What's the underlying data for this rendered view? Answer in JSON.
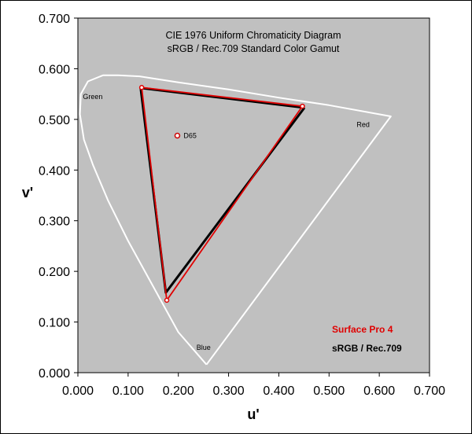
{
  "chart_data": {
    "type": "scatter",
    "title": "CIE 1976 Uniform Chromaticity Diagram",
    "subtitle": "sRGB / Rec.709 Standard Color Gamut",
    "xlabel": "u'",
    "ylabel": "v'",
    "xlim": [
      0.0,
      0.7
    ],
    "ylim": [
      0.0,
      0.7
    ],
    "x_ticks": [
      "0.000",
      "0.100",
      "0.200",
      "0.300",
      "0.400",
      "0.500",
      "0.600",
      "0.700"
    ],
    "y_ticks": [
      "0.000",
      "0.100",
      "0.200",
      "0.300",
      "0.400",
      "0.500",
      "0.600",
      "0.700"
    ],
    "grid": false,
    "plot_background": "#c0c0c0",
    "locus": {
      "color": "#ffffff",
      "u": [
        0.256,
        0.2,
        0.15,
        0.1,
        0.06,
        0.03,
        0.012,
        0.004,
        0.006,
        0.02,
        0.05,
        0.08,
        0.123,
        0.2,
        0.3,
        0.4,
        0.5,
        0.623,
        0.256
      ],
      "v": [
        0.016,
        0.08,
        0.17,
        0.26,
        0.34,
        0.41,
        0.46,
        0.51,
        0.55,
        0.575,
        0.587,
        0.587,
        0.585,
        0.573,
        0.559,
        0.543,
        0.528,
        0.506,
        0.016
      ]
    },
    "series": [
      {
        "name": "sRGB / Rec.709",
        "color": "#000000",
        "u": [
          0.451,
          0.125,
          0.175,
          0.451
        ],
        "v": [
          0.523,
          0.562,
          0.158,
          0.523
        ]
      },
      {
        "name": "Surface Pro 4",
        "color": "#e00000",
        "u": [
          0.447,
          0.127,
          0.177,
          0.447
        ],
        "v": [
          0.526,
          0.563,
          0.143,
          0.526
        ]
      }
    ],
    "white_point": {
      "label": "D65",
      "u": 0.198,
      "v": 0.468
    },
    "annotations": [
      {
        "text": "Green",
        "u": 0.01,
        "v": 0.54
      },
      {
        "text": "Red",
        "u": 0.555,
        "v": 0.485
      },
      {
        "text": "Blue",
        "u": 0.236,
        "v": 0.045
      }
    ],
    "legend_placement": "bottom-right"
  }
}
